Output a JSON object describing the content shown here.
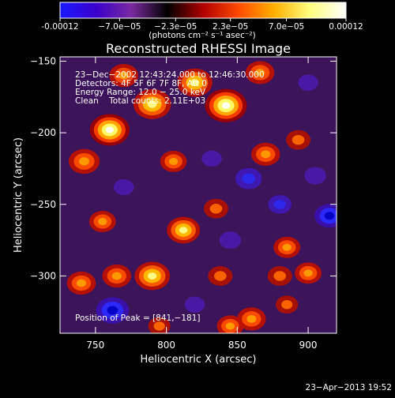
{
  "colorbar": {
    "tick_labels": [
      "-0.00012",
      "−7.0e−05",
      "−2.3e−05",
      "2.3e−05",
      "7.0e−05",
      "0.00012"
    ],
    "tick_values": [
      -0.00012,
      -7e-05,
      -2.3e-05,
      2.3e-05,
      7e-05,
      0.00012
    ],
    "range": [
      -0.00012,
      0.00012
    ],
    "units_label": "(photons cm⁻² s⁻¹ asec⁻²)",
    "colors": [
      "#1a1aff",
      "#3a00cc",
      "#7a2aa0",
      "#000000",
      "#b00000",
      "#ff4a00",
      "#ffb000",
      "#ffff80",
      "#ffffff"
    ]
  },
  "chart_data": {
    "type": "heatmap",
    "title": "Reconstructed RHESSI Image",
    "xlabel": "Heliocentric X (arcsec)",
    "ylabel": "Heliocentric Y (arcsec)",
    "xlim": [
      725,
      920
    ],
    "ylim": [
      -340,
      -147
    ],
    "x_ticks": [
      750,
      800,
      850,
      900
    ],
    "x_tick_labels": [
      "750",
      "800",
      "850",
      "900"
    ],
    "y_ticks": [
      -150,
      -200,
      -250,
      -300
    ],
    "y_tick_labels": [
      "−150",
      "−200",
      "−250",
      "−300"
    ],
    "annotations": {
      "time_range": "23−Dec−2002 12:43:24.000 to 12:46:30.000",
      "detectors": "Detectors: 4F 5F 6F 7F 8F, Att 0",
      "energy_range": "Energy Range: 12.0 − 25.0 keV",
      "algorithm": "Clean    Total counts: 2.11E+03",
      "peak": "Position of Peak = [841,−181]"
    },
    "peak": [
      841,
      -181
    ],
    "bright_sources": [
      {
        "x": 760,
        "y": -198,
        "v": 0.00011
      },
      {
        "x": 790,
        "y": -180,
        "v": 0.0001
      },
      {
        "x": 770,
        "y": -160,
        "v": 6e-05
      },
      {
        "x": 842,
        "y": -181,
        "v": 0.00012
      },
      {
        "x": 820,
        "y": -165,
        "v": 9e-05
      },
      {
        "x": 866,
        "y": -158,
        "v": 6e-05
      },
      {
        "x": 742,
        "y": -220,
        "v": 7e-05
      },
      {
        "x": 805,
        "y": -220,
        "v": 5e-05
      },
      {
        "x": 870,
        "y": -215,
        "v": 6e-05
      },
      {
        "x": 893,
        "y": -205,
        "v": 4e-05
      },
      {
        "x": 755,
        "y": -262,
        "v": 5e-05
      },
      {
        "x": 812,
        "y": -268,
        "v": 8e-05
      },
      {
        "x": 790,
        "y": -300,
        "v": 9e-05
      },
      {
        "x": 765,
        "y": -300,
        "v": 6e-05
      },
      {
        "x": 740,
        "y": -305,
        "v": 6e-05
      },
      {
        "x": 838,
        "y": -300,
        "v": 4e-05
      },
      {
        "x": 835,
        "y": -253,
        "v": 4e-05
      },
      {
        "x": 885,
        "y": -280,
        "v": 5e-05
      },
      {
        "x": 900,
        "y": -298,
        "v": 5e-05
      },
      {
        "x": 880,
        "y": -300,
        "v": 4e-05
      },
      {
        "x": 860,
        "y": -330,
        "v": 6e-05
      },
      {
        "x": 885,
        "y": -320,
        "v": 3e-05
      },
      {
        "x": 845,
        "y": -335,
        "v": 5e-05
      },
      {
        "x": 795,
        "y": -335,
        "v": 3e-05
      }
    ],
    "dim_sources": [
      {
        "x": 858,
        "y": -232,
        "v": -8e-05
      },
      {
        "x": 905,
        "y": -230,
        "v": -5e-05
      },
      {
        "x": 915,
        "y": -258,
        "v": -0.0001
      },
      {
        "x": 880,
        "y": -250,
        "v": -6e-05
      },
      {
        "x": 832,
        "y": -218,
        "v": -4e-05
      },
      {
        "x": 762,
        "y": -324,
        "v": -0.00012
      },
      {
        "x": 820,
        "y": -320,
        "v": -4e-05
      },
      {
        "x": 770,
        "y": -238,
        "v": -4e-05
      },
      {
        "x": 845,
        "y": -275,
        "v": -5e-05
      },
      {
        "x": 900,
        "y": -165,
        "v": -4e-05
      }
    ]
  },
  "footer": {
    "timestamp": "23−Apr−2013 19:52"
  }
}
